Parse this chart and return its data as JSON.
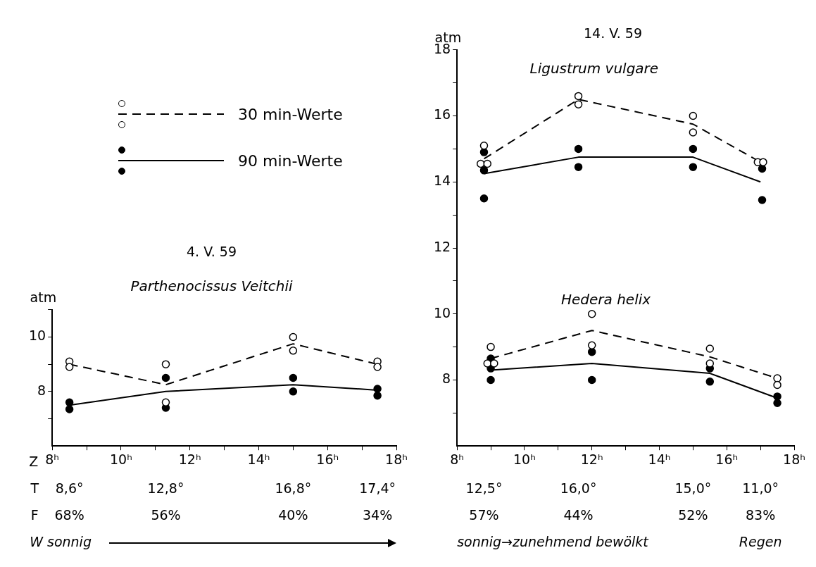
{
  "chart_data": [
    {
      "type": "line",
      "title": "4. V. 59",
      "subtitle": "Parthenocissus Veitchii",
      "xlabel": "Z",
      "ylabel": "atm",
      "legend": "top",
      "xlim": [
        8,
        18
      ],
      "xticks": [
        {
          "value": 8,
          "label": "8ʰ"
        },
        {
          "value": 9,
          "label": null
        },
        {
          "value": 10,
          "label": "10ʰ"
        },
        {
          "value": 11,
          "label": null
        },
        {
          "value": 12,
          "label": "12ʰ"
        },
        {
          "value": 13,
          "label": null
        },
        {
          "value": 14,
          "label": "14ʰ"
        },
        {
          "value": 15,
          "label": null
        },
        {
          "value": 16,
          "label": "16ʰ"
        },
        {
          "value": 17,
          "label": null
        },
        {
          "value": 18,
          "label": "18ʰ"
        }
      ],
      "ylim": [
        6,
        11
      ],
      "yticks": [
        {
          "value": 7,
          "label": null
        },
        8,
        {
          "value": 9,
          "label": null
        },
        10,
        {
          "value": 11,
          "label": null
        }
      ],
      "series": [
        {
          "name": "30 min-Werte",
          "type": "line",
          "line_style": "dashed",
          "marker": "none",
          "color": "#000000",
          "x": [
            8.5,
            11.3,
            15.0,
            17.45
          ],
          "values": [
            9.0,
            8.25,
            9.75,
            9.0
          ]
        },
        {
          "type": "scatter",
          "marker": "circle",
          "color": "#ffffff",
          "x": [
            8.5,
            8.5,
            11.3,
            11.3,
            15.0,
            15.0,
            17.45,
            17.45
          ],
          "values": [
            9.1,
            8.9,
            9.0,
            7.6,
            10.0,
            9.5,
            9.1,
            8.9
          ]
        },
        {
          "name": "90 min-Werte",
          "type": "line",
          "line_style": "solid",
          "marker": "none",
          "color": "#000000",
          "x": [
            8.5,
            11.3,
            15.0,
            17.45
          ],
          "values": [
            7.5,
            8.0,
            8.25,
            8.05
          ]
        },
        {
          "type": "scatter",
          "marker": "circle",
          "color": "#000000",
          "x": [
            8.5,
            8.5,
            11.3,
            11.3,
            15.0,
            15.0,
            17.45,
            17.45
          ],
          "values": [
            7.6,
            7.35,
            8.5,
            7.4,
            8.5,
            8.0,
            8.1,
            7.85
          ]
        }
      ],
      "annotations": [
        "T",
        "8,6°",
        "12,8°",
        "16,8°",
        "17,4°",
        "F",
        "68%",
        "56%",
        "40%",
        "34%",
        "W sonnig"
      ]
    },
    {
      "type": "line",
      "title": "14. V. 59",
      "ylabel": "atm",
      "xlim": [
        8,
        18
      ],
      "xticks": [
        {
          "value": 8,
          "label": "8ʰ"
        },
        {
          "value": 9,
          "label": null
        },
        {
          "value": 10,
          "label": "10ʰ"
        },
        {
          "value": 11,
          "label": null
        },
        {
          "value": 12,
          "label": "12ʰ"
        },
        {
          "value": 13,
          "label": null
        },
        {
          "value": 14,
          "label": "14ʰ"
        },
        {
          "value": 15,
          "label": null
        },
        {
          "value": 16,
          "label": "16ʰ"
        },
        {
          "value": 17,
          "label": null
        },
        {
          "value": 18,
          "label": "18ʰ"
        }
      ],
      "ylim": [
        6,
        18
      ],
      "yticks": [
        {
          "value": 7,
          "label": null
        },
        8,
        {
          "value": 9,
          "label": null
        },
        10,
        {
          "value": 11,
          "label": null
        },
        12,
        {
          "value": 13,
          "label": null
        },
        14,
        {
          "value": 15,
          "label": null
        },
        16,
        {
          "value": 17,
          "label": null
        },
        18
      ],
      "series": [
        {
          "name": "Ligustrum vulgare",
          "type": "line",
          "line_style": "dashed",
          "marker": "none",
          "color": "#000000",
          "x": [
            8.8,
            11.6,
            15.0,
            17.0
          ],
          "values": [
            14.7,
            16.5,
            15.75,
            14.6
          ]
        },
        {
          "type": "scatter",
          "marker": "circle",
          "color": "#ffffff",
          "x": [
            8.8,
            8.7,
            8.9,
            11.6,
            11.6,
            15.0,
            15.0,
            16.92,
            17.08
          ],
          "values": [
            15.1,
            14.55,
            14.55,
            16.6,
            16.35,
            16.0,
            15.5,
            14.6,
            14.6
          ]
        },
        {
          "type": "line",
          "line_style": "solid",
          "marker": "none",
          "color": "#000000",
          "x": [
            8.8,
            11.6,
            15.0,
            17.0
          ],
          "values": [
            14.25,
            14.75,
            14.75,
            14.0
          ]
        },
        {
          "type": "scatter",
          "marker": "circle",
          "color": "#000000",
          "x": [
            8.8,
            8.8,
            8.8,
            11.6,
            11.6,
            15.0,
            15.0,
            17.05,
            17.05
          ],
          "values": [
            14.9,
            14.35,
            13.5,
            15.0,
            14.45,
            15.0,
            14.45,
            14.4,
            13.45
          ]
        },
        {
          "name": "Hedera helix",
          "type": "line",
          "line_style": "dashed",
          "marker": "none",
          "color": "#000000",
          "x": [
            9.0,
            12.0,
            15.5,
            17.5
          ],
          "values": [
            8.65,
            9.5,
            8.7,
            8.05
          ]
        },
        {
          "type": "scatter",
          "marker": "circle",
          "color": "#ffffff",
          "x": [
            9.0,
            8.9,
            9.1,
            12.0,
            12.0,
            15.5,
            15.5,
            17.5,
            17.5
          ],
          "values": [
            9.0,
            8.5,
            8.5,
            10.0,
            9.05,
            8.95,
            8.5,
            8.05,
            7.85
          ]
        },
        {
          "type": "line",
          "line_style": "solid",
          "marker": "none",
          "color": "#000000",
          "x": [
            9.0,
            12.0,
            15.5,
            17.5
          ],
          "values": [
            8.3,
            8.5,
            8.2,
            7.45
          ]
        },
        {
          "type": "scatter",
          "marker": "circle",
          "color": "#000000",
          "x": [
            9.0,
            9.0,
            9.0,
            12.0,
            12.0,
            15.5,
            15.5,
            17.5,
            17.5
          ],
          "values": [
            8.65,
            8.35,
            8.0,
            8.85,
            8.0,
            8.35,
            7.95,
            7.5,
            7.3
          ]
        }
      ],
      "annotations": [
        "12,5°",
        "16,0°",
        "15,0°",
        "11,0°",
        "57%",
        "44%",
        "52%",
        "83%",
        "sonnig→zunehmend bewölkt",
        "Regen"
      ]
    }
  ]
}
